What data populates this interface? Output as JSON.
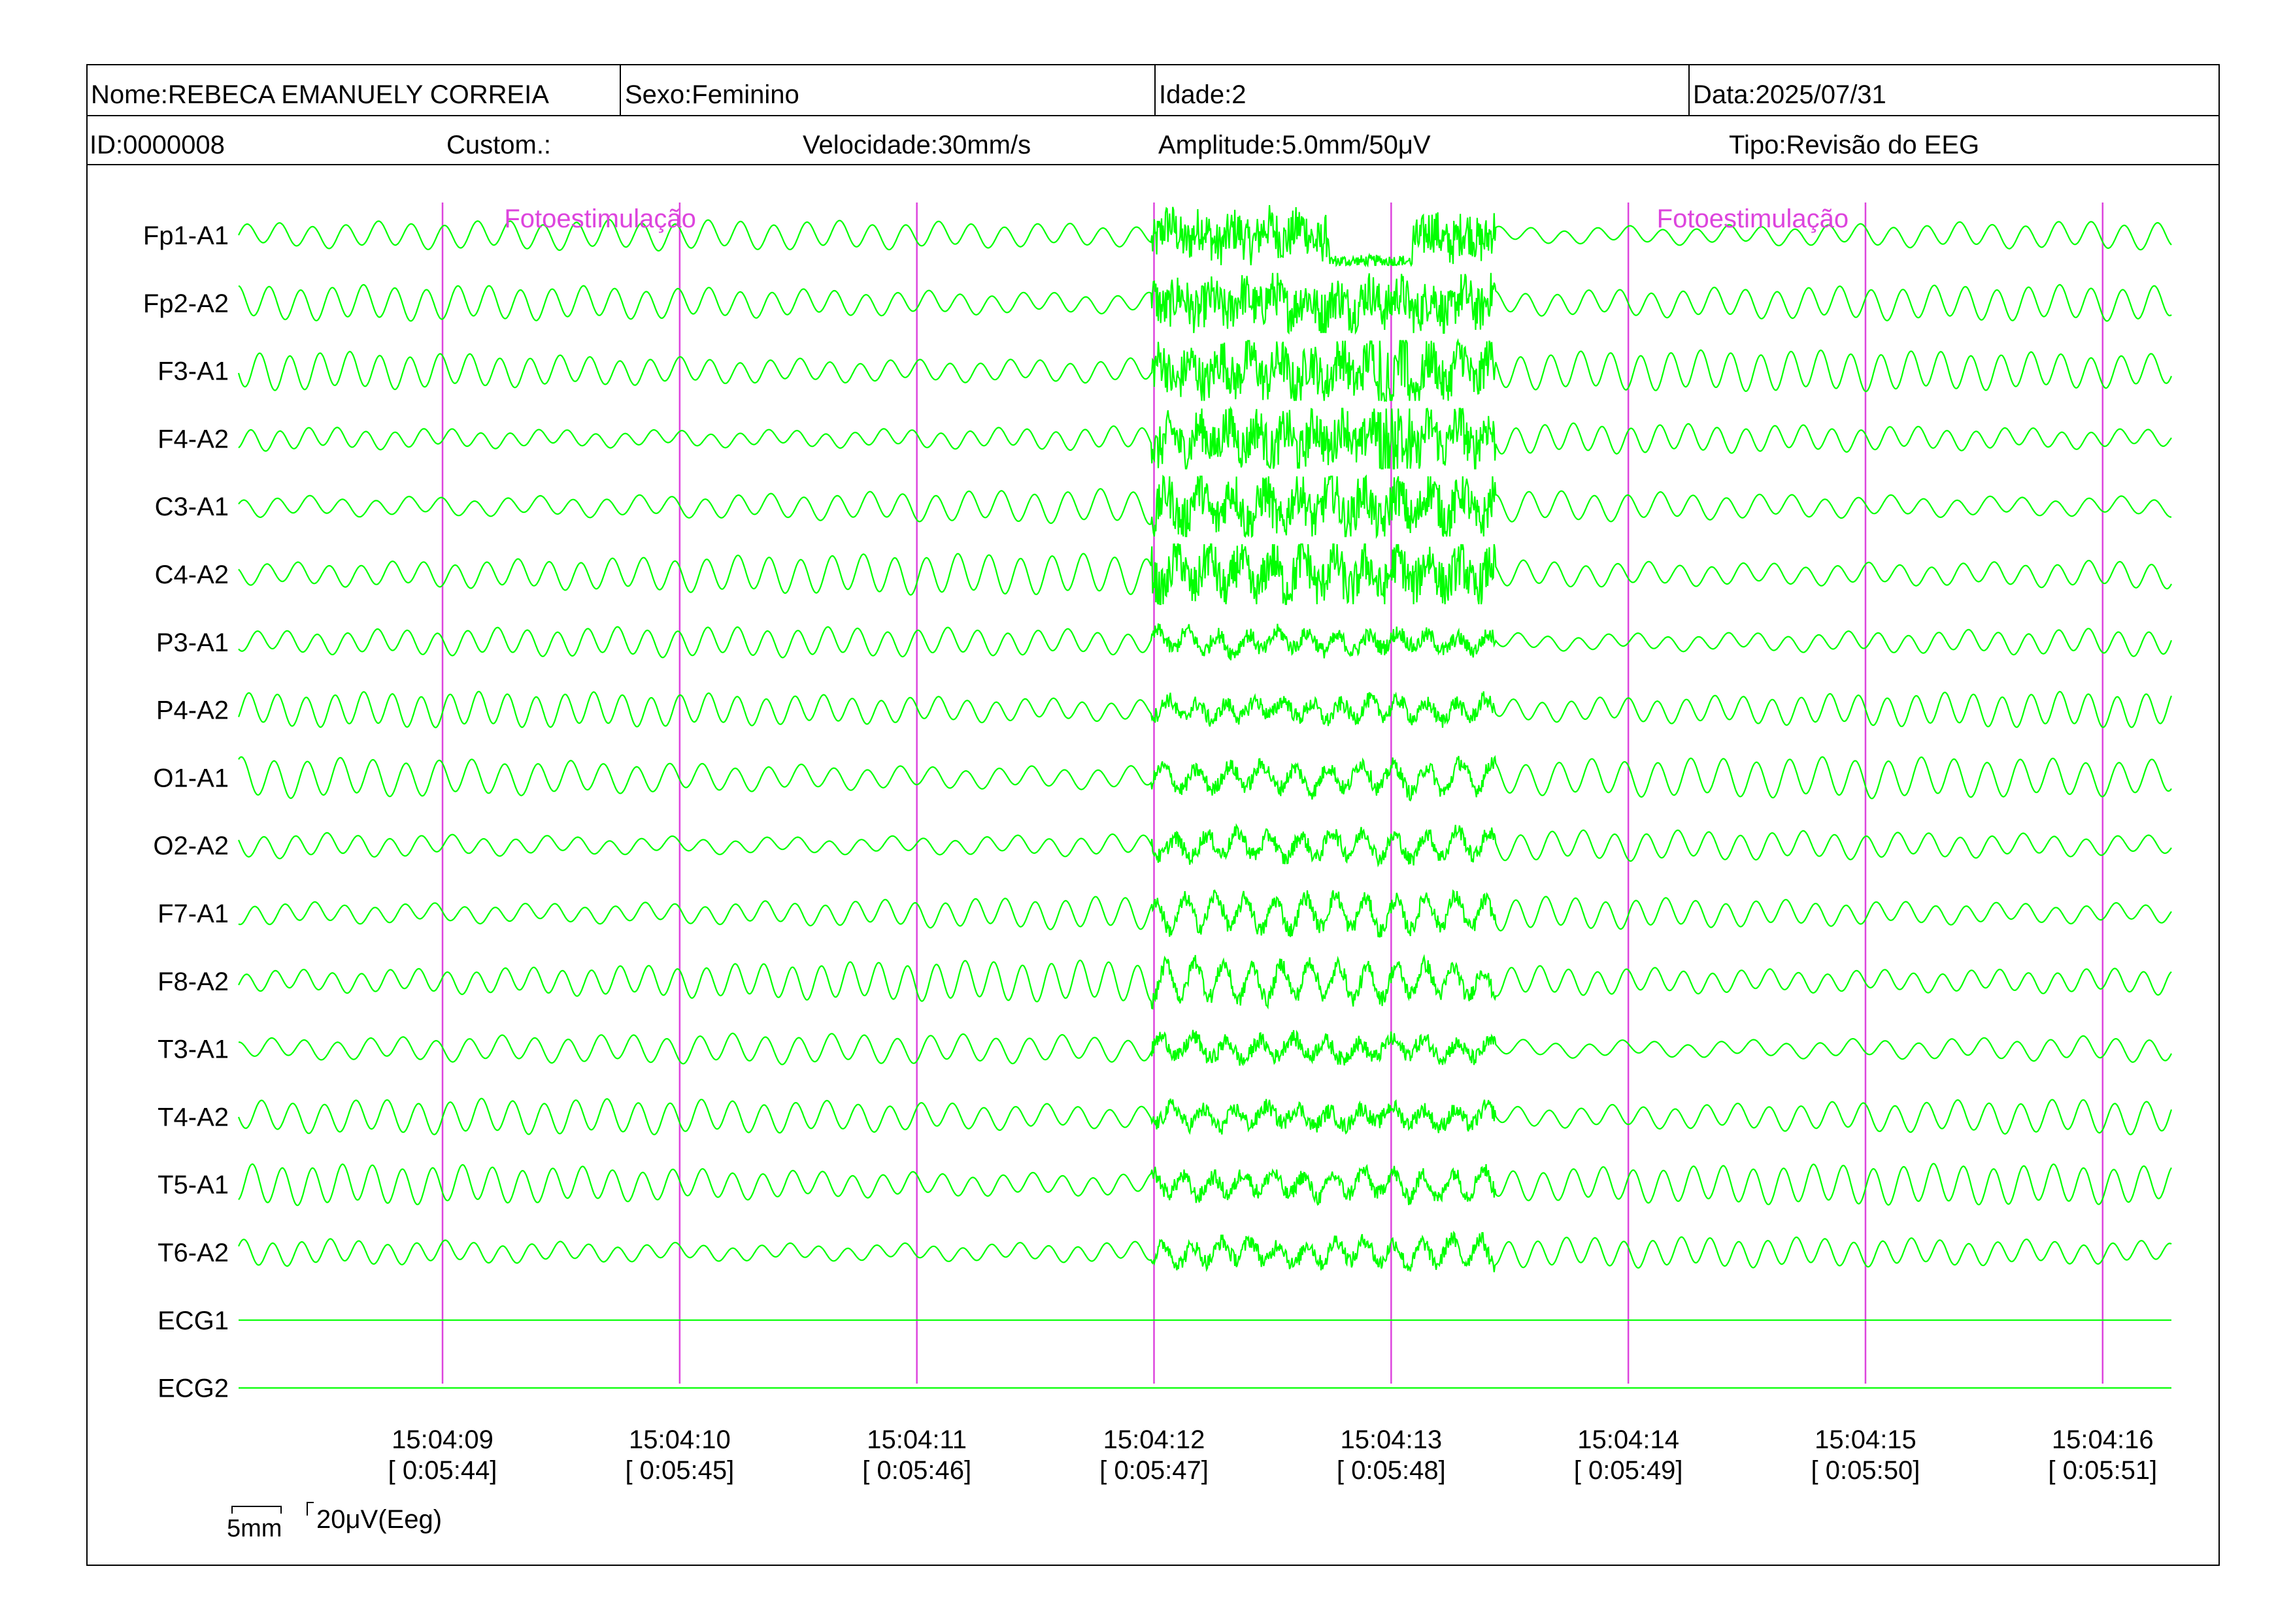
{
  "header": {
    "row1": [
      {
        "key": "nome",
        "text": "Nome:REBECA EMANUELY CORREIA"
      },
      {
        "key": "sexo",
        "text": "Sexo:Feminino"
      },
      {
        "key": "idade",
        "text": "Idade:2"
      },
      {
        "key": "data",
        "text": "Data:2025/07/31"
      }
    ],
    "row2": [
      {
        "key": "id",
        "text": "ID:0000008"
      },
      {
        "key": "custom",
        "text": "Custom.:"
      },
      {
        "key": "velocidade",
        "text": "Velocidade:30mm/s"
      },
      {
        "key": "amplitude",
        "text": "Amplitude:5.0mm/50μV"
      },
      {
        "key": "tipo",
        "text": "Tipo:Revisão do EEG"
      }
    ]
  },
  "colors": {
    "trace": "#00ff00",
    "marker": "#dd44dd",
    "frame": "#000000"
  },
  "chart_data": {
    "type": "line",
    "channels": [
      "Fp1-A1",
      "Fp2-A2",
      "F3-A1",
      "F4-A2",
      "C3-A1",
      "C4-A2",
      "P3-A1",
      "P4-A2",
      "O1-A1",
      "O2-A2",
      "F7-A1",
      "F8-A2",
      "T3-A1",
      "T4-A2",
      "T5-A1",
      "T6-A2",
      "ECG1",
      "ECG2"
    ],
    "flat_channels": [
      "ECG1",
      "ECG2"
    ],
    "x_range_seconds": [
      0,
      8.15
    ],
    "ticks": [
      {
        "t": 0.86,
        "time": "15:04:09",
        "elapsed": "[ 0:05:44]"
      },
      {
        "t": 1.86,
        "time": "15:04:10",
        "elapsed": "[ 0:05:45]"
      },
      {
        "t": 2.86,
        "time": "15:04:11",
        "elapsed": "[ 0:05:46]"
      },
      {
        "t": 3.86,
        "time": "15:04:12",
        "elapsed": "[ 0:05:47]"
      },
      {
        "t": 4.86,
        "time": "15:04:13",
        "elapsed": "[ 0:05:48]"
      },
      {
        "t": 5.86,
        "time": "15:04:14",
        "elapsed": "[ 0:05:49]"
      },
      {
        "t": 6.86,
        "time": "15:04:15",
        "elapsed": "[ 0:05:50]"
      },
      {
        "t": 7.86,
        "time": "15:04:16",
        "elapsed": "[ 0:05:51]"
      }
    ],
    "annotations": [
      {
        "t": 1.12,
        "text": "Fotoestimulação"
      },
      {
        "t": 5.98,
        "text": "Fotoestimulação"
      }
    ],
    "artifact_interval_seconds": [
      3.85,
      5.3
    ]
  },
  "scale": {
    "time_label": "5mm",
    "amp_label": "20μV(Eeg)"
  }
}
